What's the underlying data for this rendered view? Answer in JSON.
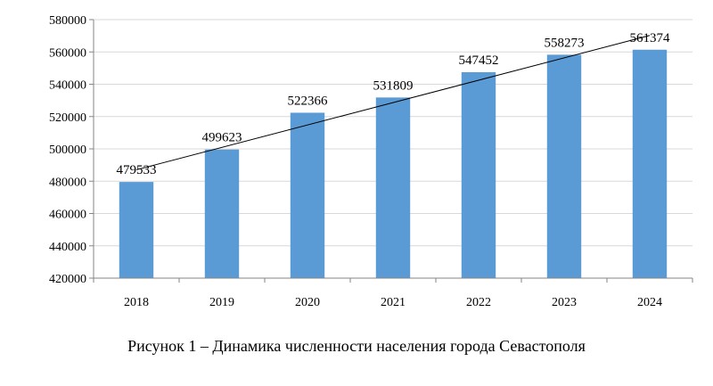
{
  "caption": "Рисунок 1 – Динамика численности населения города Севастополя",
  "chart_data": {
    "type": "bar",
    "categories": [
      "2018",
      "2019",
      "2020",
      "2021",
      "2022",
      "2023",
      "2024"
    ],
    "values": [
      479533,
      499623,
      522366,
      531809,
      547452,
      558273,
      561374
    ],
    "ylim": [
      420000,
      580000
    ],
    "yticks": [
      420000,
      440000,
      460000,
      480000,
      500000,
      520000,
      540000,
      560000,
      580000
    ],
    "grid": true,
    "legend": "none",
    "trendline": "linear",
    "bar_color": "#5b9bd5",
    "grid_color": "#d9d9d9",
    "axis_color": "#868686",
    "trend_color": "#000000"
  }
}
